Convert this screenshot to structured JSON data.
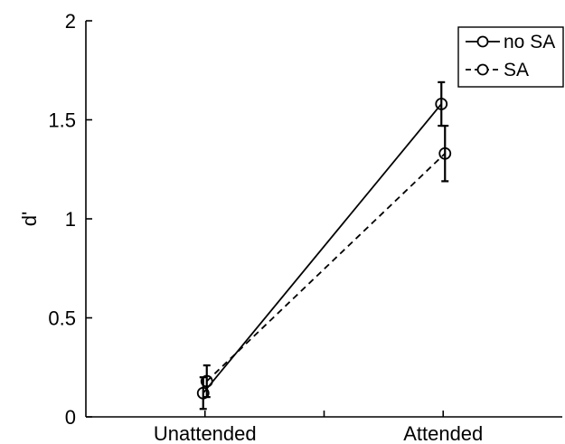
{
  "chart_data": {
    "type": "line",
    "title": "",
    "xlabel": "",
    "ylabel": "d'",
    "categories": [
      "Unattended",
      "Attended"
    ],
    "ylim": [
      0,
      2
    ],
    "yticks": [
      "0",
      "0.5",
      "1",
      "1.5",
      "2"
    ],
    "grid": false,
    "legend_position": "top-right",
    "series": [
      {
        "name": "no SA",
        "line_style": "solid",
        "marker": "circle",
        "color": "#000000",
        "values": [
          0.12,
          1.58
        ],
        "errors": [
          0.08,
          0.11
        ]
      },
      {
        "name": "SA",
        "line_style": "dashed",
        "marker": "circle",
        "color": "#000000",
        "values": [
          0.18,
          1.33
        ],
        "errors": [
          0.08,
          0.14
        ]
      }
    ]
  }
}
